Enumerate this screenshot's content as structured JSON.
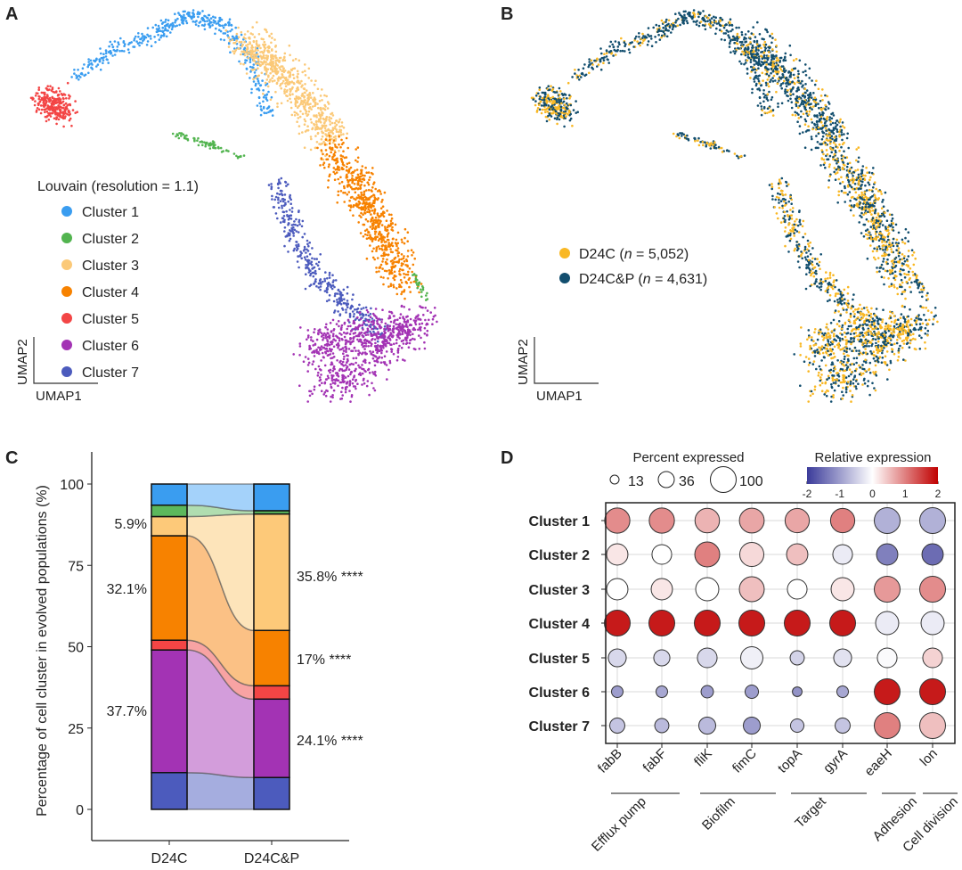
{
  "panels": {
    "a": "A",
    "b": "B",
    "c": "C",
    "d": "D"
  },
  "chart_data": [
    {
      "panel": "A",
      "type": "scatter",
      "xlabel": "UMAP1",
      "ylabel": "UMAP2",
      "legend_title": "Louvain (resolution = 1.1)",
      "legend_placement": "left",
      "series": [
        {
          "name": "Cluster 1",
          "color": "#3a9df0"
        },
        {
          "name": "Cluster 2",
          "color": "#52b44f"
        },
        {
          "name": "Cluster 3",
          "color": "#fbc978"
        },
        {
          "name": "Cluster 4",
          "color": "#f78200"
        },
        {
          "name": "Cluster 5",
          "color": "#f34545"
        },
        {
          "name": "Cluster 6",
          "color": "#a333b4"
        },
        {
          "name": "Cluster 7",
          "color": "#4c5bbd"
        }
      ]
    },
    {
      "panel": "B",
      "type": "scatter",
      "xlabel": "UMAP1",
      "ylabel": "UMAP2",
      "legend_placement": "left",
      "series": [
        {
          "name": "D24C",
          "n_label": "n",
          "n_value": " = 5,052)",
          "color": "#f9b824"
        },
        {
          "name": "D24C&P",
          "n_label": "n",
          "n_value": " = 4,631)",
          "color": "#124e6e"
        }
      ]
    },
    {
      "panel": "C",
      "type": "bar",
      "subtype": "stacked-alluvial",
      "ylabel": "Percentage of cell cluster in evolved populations (%)",
      "categories": [
        "D24C",
        "D24C&P"
      ],
      "yticks": [
        "0",
        "25",
        "50",
        "75",
        "100"
      ],
      "ylim": [
        -10,
        110
      ],
      "stack_order_bottom_to_top": [
        "Cluster 7",
        "Cluster 6",
        "Cluster 5",
        "Cluster 4",
        "Cluster 3",
        "Cluster 2",
        "Cluster 1"
      ],
      "series": [
        {
          "name": "Cluster 1",
          "color": "#3a9df0",
          "light": "#a4d2fa",
          "values": [
            6.5,
            8.2
          ]
        },
        {
          "name": "Cluster 2",
          "color": "#5cb85c",
          "light": "#b0ddb0",
          "values": [
            3.5,
            1.0
          ]
        },
        {
          "name": "Cluster 3",
          "color": "#fdc979",
          "light": "#fde4ba",
          "values": [
            5.9,
            35.8
          ]
        },
        {
          "name": "Cluster 4",
          "color": "#f78200",
          "light": "#fbc185",
          "values": [
            32.1,
            17.0
          ]
        },
        {
          "name": "Cluster 5",
          "color": "#f34545",
          "light": "#f8a3a3",
          "values": [
            3.0,
            4.1
          ]
        },
        {
          "name": "Cluster 6",
          "color": "#a333b4",
          "light": "#d39ddb",
          "values": [
            37.7,
            24.1
          ]
        },
        {
          "name": "Cluster 7",
          "color": "#4c5bbd",
          "light": "#a5addf",
          "values": [
            11.3,
            9.8
          ]
        }
      ],
      "annotations_left": [
        "5.9%",
        "32.1%",
        "37.7%"
      ],
      "annotations_right": [
        "35.8% ****",
        "17% ****",
        "24.1% ****"
      ]
    },
    {
      "panel": "D",
      "type": "scatter",
      "subtype": "dot-plot",
      "size_legend_title": "Percent expressed",
      "size_legend": [
        "13",
        "36",
        "100"
      ],
      "color_legend_title": "Relative expression",
      "color_ticks": [
        "-2",
        "-1",
        "0",
        "1",
        "2"
      ],
      "color_range": [
        -2,
        2
      ],
      "colors": {
        "low": "#3b3b9a",
        "mid": "#ffffff",
        "high": "#c00000"
      },
      "genes": [
        "fabB",
        "fabF",
        "fliK",
        "fimC",
        "topA",
        "gyrA",
        "eaeH",
        "lon"
      ],
      "groups": [
        {
          "label": "Efflux pump",
          "genes": [
            "fabB",
            "fabF"
          ]
        },
        {
          "label": "Biofilm",
          "genes": [
            "fliK",
            "fimC"
          ]
        },
        {
          "label": "Target",
          "genes": [
            "topA",
            "gyrA"
          ]
        },
        {
          "label": "Adhesion",
          "genes": [
            "eaeH"
          ]
        },
        {
          "label": "Cell division",
          "genes": [
            "lon"
          ]
        }
      ],
      "rows": [
        {
          "name": "Cluster 1",
          "color": "#3a9df0",
          "percent": [
            95,
            95,
            90,
            92,
            88,
            88,
            100,
            100
          ],
          "expression": [
            0.9,
            0.9,
            0.6,
            0.7,
            0.7,
            1.0,
            -0.8,
            -0.8
          ]
        },
        {
          "name": "Cluster 2",
          "color": "#52b44f",
          "percent": [
            68,
            58,
            93,
            87,
            68,
            58,
            68,
            68
          ],
          "expression": [
            0.2,
            0.0,
            1.0,
            0.3,
            0.5,
            -0.2,
            -1.3,
            -1.5
          ]
        },
        {
          "name": "Cluster 3",
          "color": "#fdc979",
          "percent": [
            68,
            68,
            80,
            93,
            58,
            80,
            100,
            100
          ],
          "expression": [
            0.0,
            0.2,
            0.0,
            0.5,
            0.0,
            0.2,
            0.8,
            0.9
          ]
        },
        {
          "name": "Cluster 4",
          "color": "#f78200",
          "percent": [
            100,
            100,
            100,
            100,
            100,
            100,
            80,
            80
          ],
          "expression": [
            1.8,
            1.8,
            1.8,
            1.8,
            1.8,
            1.8,
            -0.2,
            -0.2
          ]
        },
        {
          "name": "Cluster 5",
          "color": "#f34545",
          "percent": [
            48,
            39,
            58,
            74,
            30,
            48,
            58,
            58
          ],
          "expression": [
            -0.4,
            -0.4,
            -0.4,
            -0.15,
            -0.45,
            -0.3,
            -0.05,
            0.35
          ]
        },
        {
          "name": "Cluster 6",
          "color": "#a333b4",
          "percent": [
            20,
            20,
            23,
            27,
            14,
            20,
            100,
            100
          ],
          "expression": [
            -1.0,
            -0.9,
            -1.0,
            -1.0,
            -1.1,
            -0.9,
            1.8,
            1.8
          ]
        },
        {
          "name": "Cluster 7",
          "color": "#4c5bbd",
          "percent": [
            34,
            30,
            43,
            43,
            27,
            34,
            100,
            100
          ],
          "expression": [
            -0.6,
            -0.7,
            -0.7,
            -1.0,
            -0.6,
            -0.6,
            1.0,
            0.5
          ]
        }
      ]
    }
  ]
}
